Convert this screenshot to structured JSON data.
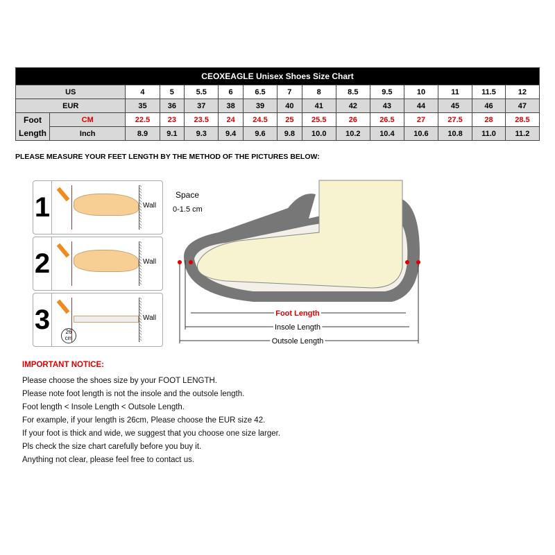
{
  "chart_data": {
    "type": "table",
    "title": "CEOXEAGLE Unisex Shoes Size Chart",
    "rows": [
      {
        "label": "US",
        "values": [
          "4",
          "5",
          "5.5",
          "6",
          "6.5",
          "7",
          "8",
          "8.5",
          "9.5",
          "10",
          "11",
          "11.5",
          "12"
        ]
      },
      {
        "label": "EUR",
        "values": [
          "35",
          "36",
          "37",
          "38",
          "39",
          "40",
          "41",
          "42",
          "43",
          "44",
          "45",
          "46",
          "47"
        ]
      },
      {
        "label": "CM",
        "group": "Foot Length",
        "values": [
          "22.5",
          "23",
          "23.5",
          "24",
          "24.5",
          "25",
          "25.5",
          "26",
          "26.5",
          "27",
          "27.5",
          "28",
          "28.5"
        ]
      },
      {
        "label": "Inch",
        "group": "Foot Length",
        "values": [
          "8.9",
          "9.1",
          "9.3",
          "9.4",
          "9.6",
          "9.8",
          "10.0",
          "10.2",
          "10.4",
          "10.6",
          "10.8",
          "11.0",
          "11.2"
        ]
      }
    ]
  },
  "group_label": {
    "line1": "Foot",
    "line2": "Length"
  },
  "instruction": "PLEASE MEASURE YOUR FEET LENGTH BY THE METHOD OF THE PICTURES BELOW:",
  "steps": [
    {
      "num": "1",
      "wall": "Wall"
    },
    {
      "num": "2",
      "wall": "Wall"
    },
    {
      "num": "3",
      "wall": "Wall",
      "ruler_label1": "26",
      "ruler_label2": "cm"
    }
  ],
  "diagram": {
    "space": "Space",
    "space_range": "0-1.5 cm",
    "foot_length": "Foot Length",
    "insole_length": "Insole Length",
    "outsole_length": "Outsole Length"
  },
  "notice_title": "IMPORTANT NOTICE:",
  "notices": [
    "Please choose the shoes size by your FOOT LENGTH.",
    "Please note foot length is not the insole and the outsole length.",
    "Foot length < Insole Length < Outsole Length.",
    "For example, if your length is 26cm, Please choose the EUR size 42.",
    "If your foot is thick and wide, we suggest that you choose one size larger.",
    "Pls check the size chart carefully before you buy it.",
    "Anything not clear, please feel free to contact us."
  ],
  "colors": {
    "accent_red": "#dd0000",
    "header_bg": "#000000",
    "label_bg": "#d9d9d9"
  }
}
